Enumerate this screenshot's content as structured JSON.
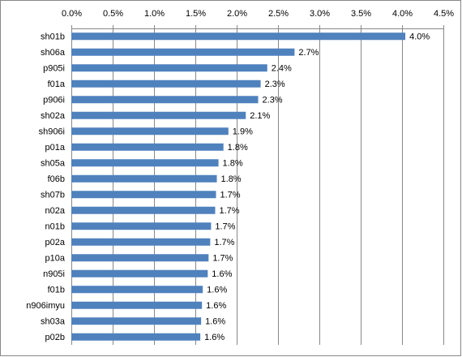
{
  "chart_data": {
    "type": "bar",
    "orientation": "horizontal",
    "categories": [
      "sh01b",
      "sh06a",
      "p905i",
      "f01a",
      "p906i",
      "sh02a",
      "sh906i",
      "p01a",
      "sh05a",
      "f06b",
      "sh07b",
      "n02a",
      "n01b",
      "p02a",
      "p10a",
      "n905i",
      "f01b",
      "n906imyu",
      "sh03a",
      "p02b"
    ],
    "values": [
      4.04,
      2.7,
      2.37,
      2.29,
      2.26,
      2.11,
      1.9,
      1.84,
      1.78,
      1.76,
      1.75,
      1.74,
      1.69,
      1.68,
      1.66,
      1.65,
      1.59,
      1.58,
      1.57,
      1.56
    ],
    "value_labels": [
      "4.0%",
      "2.7%",
      "2.4%",
      "2.3%",
      "2.3%",
      "2.1%",
      "1.9%",
      "1.8%",
      "1.8%",
      "1.8%",
      "1.7%",
      "1.7%",
      "1.7%",
      "1.7%",
      "1.7%",
      "1.6%",
      "1.6%",
      "1.6%",
      "1.6%",
      "1.6%"
    ],
    "color": "#4f81bd",
    "xlim": [
      0,
      4.5
    ],
    "xticks": [
      {
        "value": 0,
        "label": "0.0%"
      },
      {
        "value": 0.5,
        "label": "0.5%"
      },
      {
        "value": 1,
        "label": "1.0%"
      },
      {
        "value": 1.5,
        "label": "1.5%"
      },
      {
        "value": 2,
        "label": "2.0%"
      },
      {
        "value": 2.5,
        "label": "2.5%"
      },
      {
        "value": 3,
        "label": "3.0%"
      },
      {
        "value": 3.5,
        "label": "3.5%"
      },
      {
        "value": 4,
        "label": "4.0%"
      },
      {
        "value": 4.5,
        "label": "4.5%"
      }
    ],
    "grid": true
  }
}
